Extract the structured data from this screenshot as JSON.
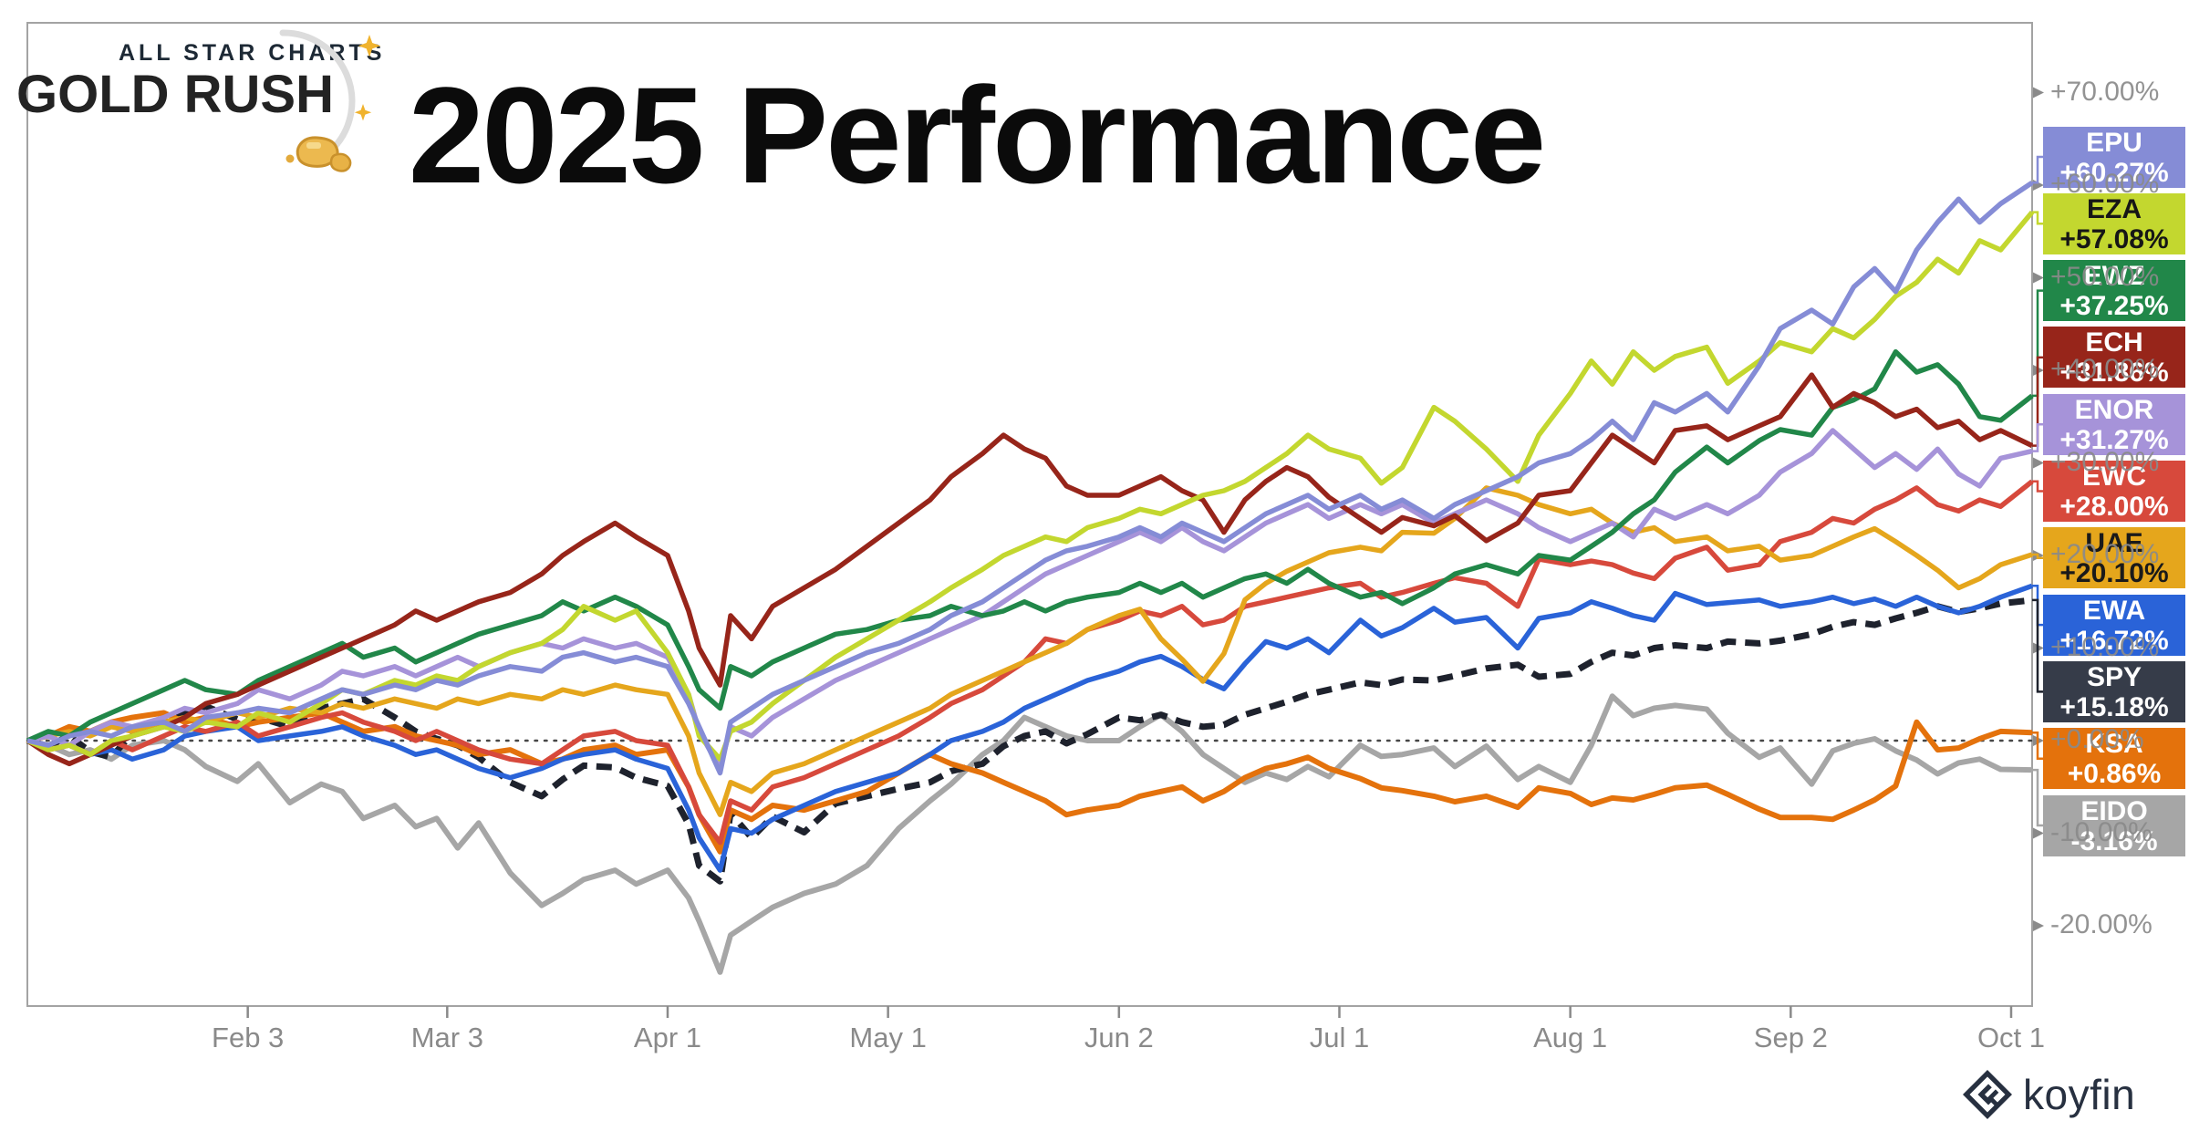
{
  "header": {
    "title": "2025 Performance"
  },
  "branding": {
    "allstarcharts_line1": "ALL STAR CHARTS",
    "allstarcharts_line2": "GOLD RUSH",
    "koyfin_label": "koyfin"
  },
  "chart_data": {
    "type": "line",
    "title": "2025 Performance",
    "grid": "none",
    "legend_position": "right",
    "axis_color": "#8a8a8a",
    "plot_border_color": "#a3a3a3",
    "zero_line_color": "#474747",
    "zero_line_value": 0,
    "x_axis": {
      "tick_labels": [
        "Feb 3",
        "Mar 3",
        "Apr 1",
        "May 1",
        "Jun 2",
        "Jul 1",
        "Aug 1",
        "Sep 2",
        "Oct 1"
      ],
      "tick_days": [
        21,
        40,
        61,
        82,
        104,
        125,
        147,
        168,
        189
      ],
      "total_days": 191
    },
    "y_axis": {
      "unit": "%",
      "tick_labels": [
        "+70.00%",
        "+60.00%",
        "+50.00%",
        "+40.00%",
        "+30.00%",
        "+20.00%",
        "+10.00%",
        "+0.00%",
        "-10.00%",
        "-20.00%"
      ],
      "tick_values": [
        70,
        60,
        50,
        40,
        30,
        20,
        10,
        0,
        -10,
        -20
      ]
    },
    "days": [
      0,
      2,
      4,
      6,
      8,
      10,
      13,
      15,
      17,
      20,
      22,
      25,
      28,
      30,
      32,
      35,
      37,
      39,
      41,
      43,
      46,
      49,
      51,
      53,
      56,
      58,
      61,
      63,
      64,
      66,
      67,
      69,
      71,
      74,
      77,
      80,
      83,
      86,
      88,
      91,
      93,
      95,
      97,
      99,
      101,
      104,
      106,
      108,
      110,
      112,
      114,
      116,
      118,
      120,
      122,
      124,
      127,
      129,
      131,
      134,
      136,
      139,
      142,
      144,
      147,
      149,
      151,
      153,
      155,
      157,
      160,
      162,
      165,
      167,
      170,
      172,
      174,
      176,
      178,
      180,
      182,
      184,
      186,
      188,
      191
    ],
    "series": [
      {
        "ticker": "EPU",
        "label": "+60.27%",
        "end_value": 60.27,
        "color": "#858cd6",
        "text_color": "#ffffff",
        "dash": false,
        "width": 5.5,
        "z": 10,
        "values": [
          0,
          -0.5,
          0.5,
          1,
          0.5,
          1.5,
          2,
          1,
          2.5,
          3,
          3.5,
          3,
          4.5,
          5.5,
          5,
          6,
          5.5,
          6.5,
          6,
          7,
          8,
          7.5,
          9,
          9.5,
          8.5,
          9,
          8,
          4,
          1.5,
          -3.5,
          2,
          3.5,
          5,
          6.5,
          8,
          9.5,
          10.5,
          12,
          13.5,
          15,
          16.5,
          18,
          19.5,
          20.5,
          21,
          22,
          23,
          22,
          23.5,
          22.5,
          21.5,
          23,
          24.5,
          25.5,
          26.5,
          25,
          26.5,
          25,
          26,
          24,
          25.5,
          27,
          28.5,
          30,
          31,
          32.5,
          34.5,
          32.5,
          36.5,
          35.5,
          37.5,
          35.5,
          40.5,
          44.5,
          46.5,
          45,
          49,
          51,
          48.5,
          53,
          56,
          58.5,
          56,
          58,
          60.27
        ]
      },
      {
        "ticker": "EZA",
        "label": "+57.08%",
        "end_value": 57.08,
        "color": "#c3d72f",
        "text_color": "#161616",
        "dash": false,
        "width": 5.5,
        "z": 9,
        "values": [
          0,
          -1,
          -0.5,
          -1.5,
          0,
          0.5,
          1.5,
          1,
          2,
          1.5,
          3,
          2,
          4,
          5.5,
          5,
          6.5,
          6,
          7,
          6.5,
          8,
          9.5,
          10.5,
          12,
          14.5,
          13,
          14,
          9.5,
          5,
          0.5,
          -2,
          1,
          2,
          4,
          6.5,
          9,
          11,
          13,
          15,
          16.5,
          18.5,
          20,
          21,
          22,
          21.5,
          23,
          24,
          25,
          24.5,
          25.5,
          26.5,
          27,
          28,
          29.5,
          31,
          33,
          31.5,
          30.5,
          27.8,
          29.5,
          36,
          34.5,
          31.5,
          28,
          33,
          37.5,
          41,
          38.5,
          42,
          40,
          41.5,
          42.5,
          38.6,
          41,
          43,
          42,
          44.5,
          43.5,
          45.5,
          48,
          49.5,
          52,
          50.5,
          54,
          53,
          57.08
        ]
      },
      {
        "ticker": "EWZ",
        "label": "+37.25%",
        "end_value": 37.25,
        "color": "#218749",
        "text_color": "#ffffff",
        "dash": false,
        "width": 5.5,
        "z": 7,
        "values": [
          0,
          1,
          0.5,
          2,
          3,
          4,
          5.5,
          6.5,
          5.5,
          5,
          6.5,
          8,
          9.5,
          10.5,
          9,
          10,
          8.5,
          9.5,
          10.5,
          11.5,
          12.5,
          13.5,
          15,
          14,
          15.5,
          14.5,
          12.5,
          8,
          5.5,
          3.5,
          8,
          7,
          8.5,
          10,
          11.5,
          12,
          13,
          13.5,
          14.5,
          13.5,
          14,
          15,
          14,
          15,
          15.5,
          16,
          17,
          16,
          17,
          15.5,
          16.5,
          17.5,
          18,
          17,
          18.5,
          17,
          15.5,
          16,
          14.8,
          16.5,
          18,
          19,
          18,
          20,
          19.5,
          21,
          22.5,
          24.5,
          26,
          29,
          31.7,
          30,
          32.4,
          33.6,
          33,
          36,
          36.8,
          38,
          42,
          39.8,
          40.6,
          38.5,
          35,
          34.6,
          37.25
        ]
      },
      {
        "ticker": "ECH",
        "label": "+31.86%",
        "end_value": 31.86,
        "color": "#97251a",
        "text_color": "#ffffff",
        "dash": false,
        "width": 5.5,
        "z": 8,
        "values": [
          0,
          -1.5,
          -2.5,
          -1.5,
          -0.5,
          0.5,
          1.5,
          2.5,
          4,
          5,
          6,
          7.5,
          9,
          10,
          11,
          12.5,
          14,
          13,
          14,
          15,
          16,
          18,
          20,
          21.5,
          23.5,
          22,
          20,
          14,
          10,
          6,
          13.5,
          11,
          14.5,
          16.5,
          18.5,
          21,
          23.5,
          26,
          28.5,
          31,
          33,
          31.5,
          30.5,
          27.5,
          26.5,
          26.5,
          27.5,
          28.5,
          27,
          26,
          22.5,
          26,
          28,
          29.5,
          28.5,
          26.3,
          24,
          22.5,
          24.1,
          23.2,
          24.3,
          21.6,
          23.5,
          26.5,
          27,
          30,
          33,
          31.5,
          30,
          33.5,
          34,
          32.5,
          34,
          35,
          39.5,
          36,
          37.5,
          36.5,
          35,
          35.8,
          33.8,
          34.5,
          32.5,
          33.5,
          31.86
        ]
      },
      {
        "ticker": "ENOR",
        "label": "+31.27%",
        "end_value": 31.27,
        "color": "#a693d9",
        "text_color": "#ffffff",
        "dash": false,
        "width": 5.5,
        "z": 6,
        "values": [
          0,
          0.5,
          -0.5,
          1,
          2,
          1.5,
          2.5,
          3.5,
          3,
          4,
          5.5,
          4.5,
          6,
          7.5,
          7,
          8,
          7,
          8,
          9,
          8,
          9.5,
          10.5,
          10,
          11,
          10,
          10.5,
          9,
          5,
          1,
          -3,
          1.5,
          0.5,
          2.5,
          4.5,
          6.5,
          8,
          9.5,
          11,
          12,
          13.5,
          15,
          16.5,
          18,
          19,
          20,
          21.5,
          22.5,
          21.5,
          23,
          21.5,
          20.5,
          22,
          23.5,
          24.5,
          25.5,
          24,
          25.5,
          24.5,
          25.5,
          23.5,
          24.5,
          26,
          24.5,
          23,
          21.5,
          22.5,
          23.5,
          22,
          25,
          24,
          25.5,
          24.5,
          26.5,
          29,
          31,
          33.5,
          31.5,
          29.5,
          31,
          29.3,
          31.5,
          28.8,
          27.5,
          30.5,
          31.27
        ]
      },
      {
        "ticker": "EWC",
        "label": "+28.00%",
        "end_value": 28.0,
        "color": "#d7493c",
        "text_color": "#ffffff",
        "dash": false,
        "width": 5.5,
        "z": 4,
        "values": [
          0,
          -1,
          -0.5,
          -1.5,
          0,
          -1,
          0.5,
          1.5,
          1,
          2,
          0.5,
          1.5,
          2.5,
          3,
          2,
          1,
          0,
          1,
          0,
          -1,
          -2,
          -2.5,
          -1,
          0.5,
          1,
          0,
          -0.5,
          -5,
          -8,
          -11,
          -6.5,
          -7.5,
          -5,
          -4,
          -2.5,
          -1,
          0.5,
          2.5,
          4,
          5.5,
          7,
          8.5,
          11,
          10.5,
          12,
          13,
          14,
          13.5,
          14.5,
          12.5,
          13,
          14.5,
          15,
          15.5,
          16,
          16.5,
          17,
          15.5,
          16,
          17,
          17.6,
          17,
          14.5,
          19.6,
          19,
          19.4,
          19,
          18.1,
          17.5,
          19.7,
          20.9,
          18.4,
          19,
          21.5,
          22.5,
          24,
          23.5,
          25,
          26,
          27.3,
          25.5,
          24.8,
          26,
          25.3,
          28.0
        ]
      },
      {
        "ticker": "UAE",
        "label": "+20.10%",
        "end_value": 20.1,
        "color": "#e5a61c",
        "text_color": "#1a1a1a",
        "dash": false,
        "width": 5.5,
        "z": 5,
        "values": [
          0,
          0.5,
          1,
          0.5,
          1.5,
          1,
          2,
          2.5,
          2,
          3,
          2.5,
          3.5,
          3,
          4,
          3.5,
          4.5,
          4,
          3.5,
          4.5,
          4,
          5,
          4.5,
          5.5,
          5,
          6,
          5.5,
          5,
          0.5,
          -3.5,
          -8,
          -4.5,
          -5.5,
          -3.5,
          -2.5,
          -1,
          0.5,
          2,
          3.5,
          5,
          6.5,
          7.5,
          8.5,
          9.5,
          10.5,
          12,
          13.5,
          14.2,
          11,
          8.8,
          6.4,
          9.4,
          15.2,
          17,
          18.3,
          19.3,
          20.3,
          20.9,
          20.5,
          22.5,
          22.4,
          24,
          27.3,
          26.5,
          25.5,
          24.5,
          25,
          23.5,
          22.5,
          23,
          21.5,
          22,
          20.5,
          21,
          19.5,
          20,
          21,
          22,
          22.9,
          21.5,
          20,
          18.4,
          16.5,
          17.5,
          19,
          20.1
        ]
      },
      {
        "ticker": "EWA",
        "label": "+16.72%",
        "end_value": 16.72,
        "color": "#2a63d8",
        "text_color": "#ffffff",
        "dash": false,
        "width": 5.5,
        "z": 3,
        "values": [
          0,
          0.5,
          -0.5,
          -1.5,
          -1,
          -2,
          -1,
          0.5,
          1,
          1.5,
          0,
          0.5,
          1,
          1.5,
          0.5,
          -0.5,
          -1.5,
          -1,
          -2,
          -3,
          -4,
          -3,
          -2,
          -1.5,
          -1,
          -2,
          -3,
          -7.5,
          -10.5,
          -14,
          -9.5,
          -10,
          -8.5,
          -7,
          -5.5,
          -4.5,
          -3.5,
          -1.5,
          0,
          1,
          2,
          3.5,
          4.5,
          5.5,
          6.5,
          7.5,
          8.5,
          9.1,
          8,
          6.6,
          5.6,
          8.3,
          10.7,
          10,
          11,
          9.5,
          13,
          11.3,
          12.2,
          14.3,
          12.8,
          13.3,
          10,
          13.2,
          13.8,
          15,
          14.3,
          13.5,
          13,
          15.9,
          14.7,
          14.9,
          15.2,
          14.5,
          15,
          15.5,
          14.8,
          15.3,
          14.5,
          15.5,
          14.5,
          13.8,
          14.5,
          15.5,
          16.72
        ]
      },
      {
        "ticker": "SPY",
        "label": "+15.18%",
        "end_value": 15.18,
        "color": "#363c49",
        "line_color": "#1e222d",
        "text_color": "#ffffff",
        "dash": true,
        "width": 7,
        "z": 1,
        "values": [
          0,
          -0.6,
          0.5,
          -1.2,
          -1.8,
          0.8,
          2,
          3,
          3.7,
          2.3,
          2.5,
          1.5,
          3.5,
          4,
          4.5,
          2.5,
          1,
          0.2,
          -0.5,
          -1.8,
          -4.5,
          -6,
          -4.2,
          -2.7,
          -2.9,
          -4,
          -4.9,
          -9,
          -13.5,
          -15.2,
          -7.8,
          -10.5,
          -8.2,
          -9.9,
          -6.8,
          -6,
          -5.2,
          -4.5,
          -3.3,
          -2.5,
          -0.6,
          0.5,
          1,
          -0.3,
          0.7,
          2.5,
          2.2,
          2.8,
          2,
          1.5,
          1.7,
          2.8,
          3.5,
          4.2,
          5,
          5.5,
          6.3,
          6,
          6.6,
          6.5,
          7,
          7.8,
          8.2,
          6.9,
          7.2,
          8.5,
          9.5,
          9.2,
          10,
          10.3,
          10,
          10.7,
          10.5,
          10.8,
          11.5,
          12.3,
          12.8,
          12.5,
          13.2,
          13.8,
          14.5,
          13.9,
          14.3,
          14.8,
          15.18
        ]
      },
      {
        "ticker": "KSA",
        "label": "+0.86%",
        "end_value": 0.86,
        "color": "#e4720c",
        "text_color": "#ffffff",
        "dash": false,
        "width": 6,
        "z": 2,
        "values": [
          0,
          0.5,
          1.5,
          1,
          2,
          2.5,
          3,
          2,
          2.5,
          1.5,
          2,
          2.5,
          3,
          2,
          1,
          1.5,
          0.5,
          0,
          -0.5,
          -1.5,
          -1,
          -2.5,
          -2,
          -1,
          -0.5,
          -1.5,
          -1,
          -5,
          -8,
          -12,
          -7.5,
          -8.5,
          -7,
          -7.5,
          -6.5,
          -5.5,
          -3.5,
          -1.5,
          -2.5,
          -3.5,
          -4.5,
          -5.5,
          -6.5,
          -8,
          -7.5,
          -7,
          -6,
          -5.5,
          -5,
          -6.5,
          -5.5,
          -4,
          -3,
          -2.5,
          -1.8,
          -3,
          -4.1,
          -5.1,
          -5.4,
          -6,
          -6.6,
          -6,
          -7.2,
          -5.1,
          -5.7,
          -6.9,
          -6.2,
          -6.4,
          -5.8,
          -5.1,
          -4.8,
          -5.8,
          -7.4,
          -8.3,
          -8.3,
          -8.5,
          -7.5,
          -6.4,
          -4.9,
          2,
          -1,
          -0.8,
          0.2,
          1,
          0.86
        ]
      },
      {
        "ticker": "EIDO",
        "label": "-3.16%",
        "end_value": -3.16,
        "color": "#a6a6a6",
        "text_color": "#ffffff",
        "dash": false,
        "width": 6,
        "z": 0,
        "values": [
          0,
          -0.5,
          -1.5,
          -1,
          -2,
          -0.5,
          0,
          -1,
          -2.8,
          -4.4,
          -2.5,
          -6.7,
          -4.7,
          -5.5,
          -8.4,
          -7,
          -9.3,
          -8.4,
          -11.6,
          -8.9,
          -14.3,
          -17.8,
          -16.5,
          -15,
          -14,
          -15.5,
          -14,
          -17,
          -19.5,
          -25,
          -21,
          -19.5,
          -18,
          -16.5,
          -15.5,
          -13.5,
          -9.5,
          -6.5,
          -4.7,
          -1.5,
          0,
          2.5,
          1.5,
          0.5,
          0,
          0,
          1.5,
          2.8,
          1,
          -1.5,
          -3,
          -4.5,
          -3.5,
          -4.2,
          -2.8,
          -3.9,
          -0.5,
          -1.7,
          -1.5,
          -0.8,
          -2.8,
          -0.6,
          -4.2,
          -2.8,
          -4.5,
          -0.5,
          4.8,
          2.7,
          3.5,
          3.8,
          3.4,
          0.8,
          -1.8,
          -0.8,
          -4.7,
          -1.1,
          -0.3,
          0.2,
          -1.1,
          -2.1,
          -3.6,
          -2.4,
          -2,
          -3.1,
          -3.16
        ]
      }
    ]
  }
}
